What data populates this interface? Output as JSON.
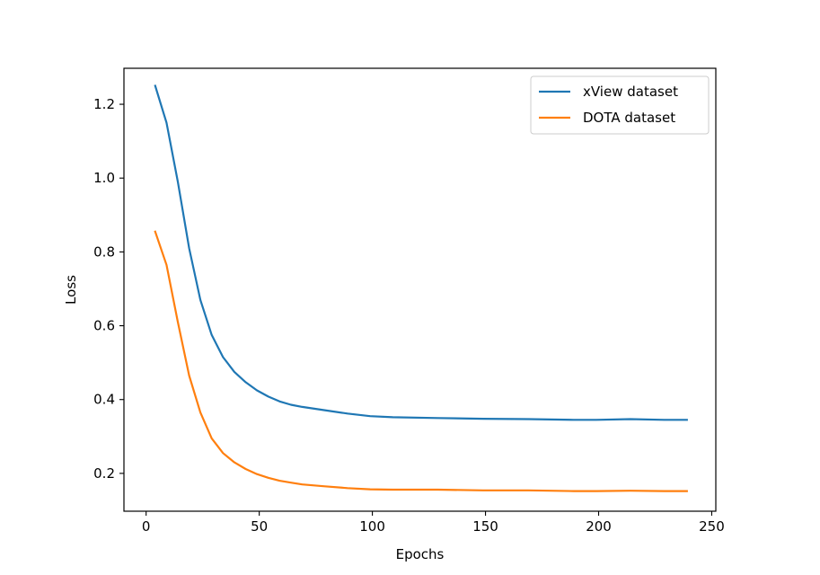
{
  "chart_data": {
    "type": "line",
    "title": "",
    "xlabel": "Epochs",
    "ylabel": "Loss",
    "xlim": [
      -9.8,
      251.8
    ],
    "ylim": [
      0.0975,
      1.2975
    ],
    "xticks": [
      0,
      50,
      100,
      150,
      200,
      250
    ],
    "xtick_labels": [
      "0",
      "50",
      "100",
      "150",
      "200",
      "250"
    ],
    "yticks": [
      0.2,
      0.4,
      0.6,
      0.8,
      1.0,
      1.2
    ],
    "ytick_labels": [
      "0.2",
      "0.4",
      "0.6",
      "0.8",
      "1.0",
      "1.2"
    ],
    "grid": false,
    "legend_position": "top-right",
    "series": [
      {
        "name": "xView dataset",
        "color": "#1f77b4",
        "x": [
          4,
          9,
          14,
          19,
          24,
          29,
          34,
          39,
          44,
          49,
          54,
          59,
          64,
          69,
          79,
          89,
          99,
          109,
          129,
          149,
          169,
          189,
          199,
          214,
          229,
          239
        ],
        "y": [
          1.25,
          1.15,
          0.99,
          0.81,
          0.67,
          0.575,
          0.515,
          0.475,
          0.447,
          0.425,
          0.408,
          0.395,
          0.386,
          0.38,
          0.371,
          0.362,
          0.355,
          0.352,
          0.35,
          0.348,
          0.347,
          0.345,
          0.345,
          0.347,
          0.345,
          0.345
        ]
      },
      {
        "name": "DOTA dataset",
        "color": "#ff7f0e",
        "x": [
          4,
          9,
          14,
          19,
          24,
          29,
          34,
          39,
          44,
          49,
          54,
          59,
          64,
          69,
          79,
          89,
          99,
          109,
          129,
          149,
          169,
          189,
          199,
          214,
          229,
          239
        ],
        "y": [
          0.855,
          0.765,
          0.61,
          0.465,
          0.365,
          0.295,
          0.255,
          0.23,
          0.212,
          0.198,
          0.188,
          0.18,
          0.175,
          0.17,
          0.165,
          0.16,
          0.157,
          0.156,
          0.156,
          0.154,
          0.154,
          0.152,
          0.152,
          0.153,
          0.152,
          0.152
        ]
      }
    ]
  }
}
